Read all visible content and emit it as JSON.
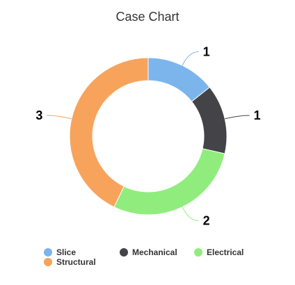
{
  "chart_data": {
    "type": "pie",
    "variant": "donut",
    "title": "Case Chart",
    "categories": [
      "Slice",
      "Mechanical",
      "Electrical",
      "Structural"
    ],
    "values": [
      1,
      1,
      2,
      3
    ],
    "colors": [
      "#7cb5ec",
      "#434348",
      "#90ed7d",
      "#f7a35c"
    ],
    "data_labels": [
      "1",
      "1",
      "2",
      "3"
    ],
    "legend": {
      "placement": "bottom-left",
      "items": [
        "Slice",
        "Mechanical",
        "Electrical",
        "Structural"
      ]
    }
  }
}
